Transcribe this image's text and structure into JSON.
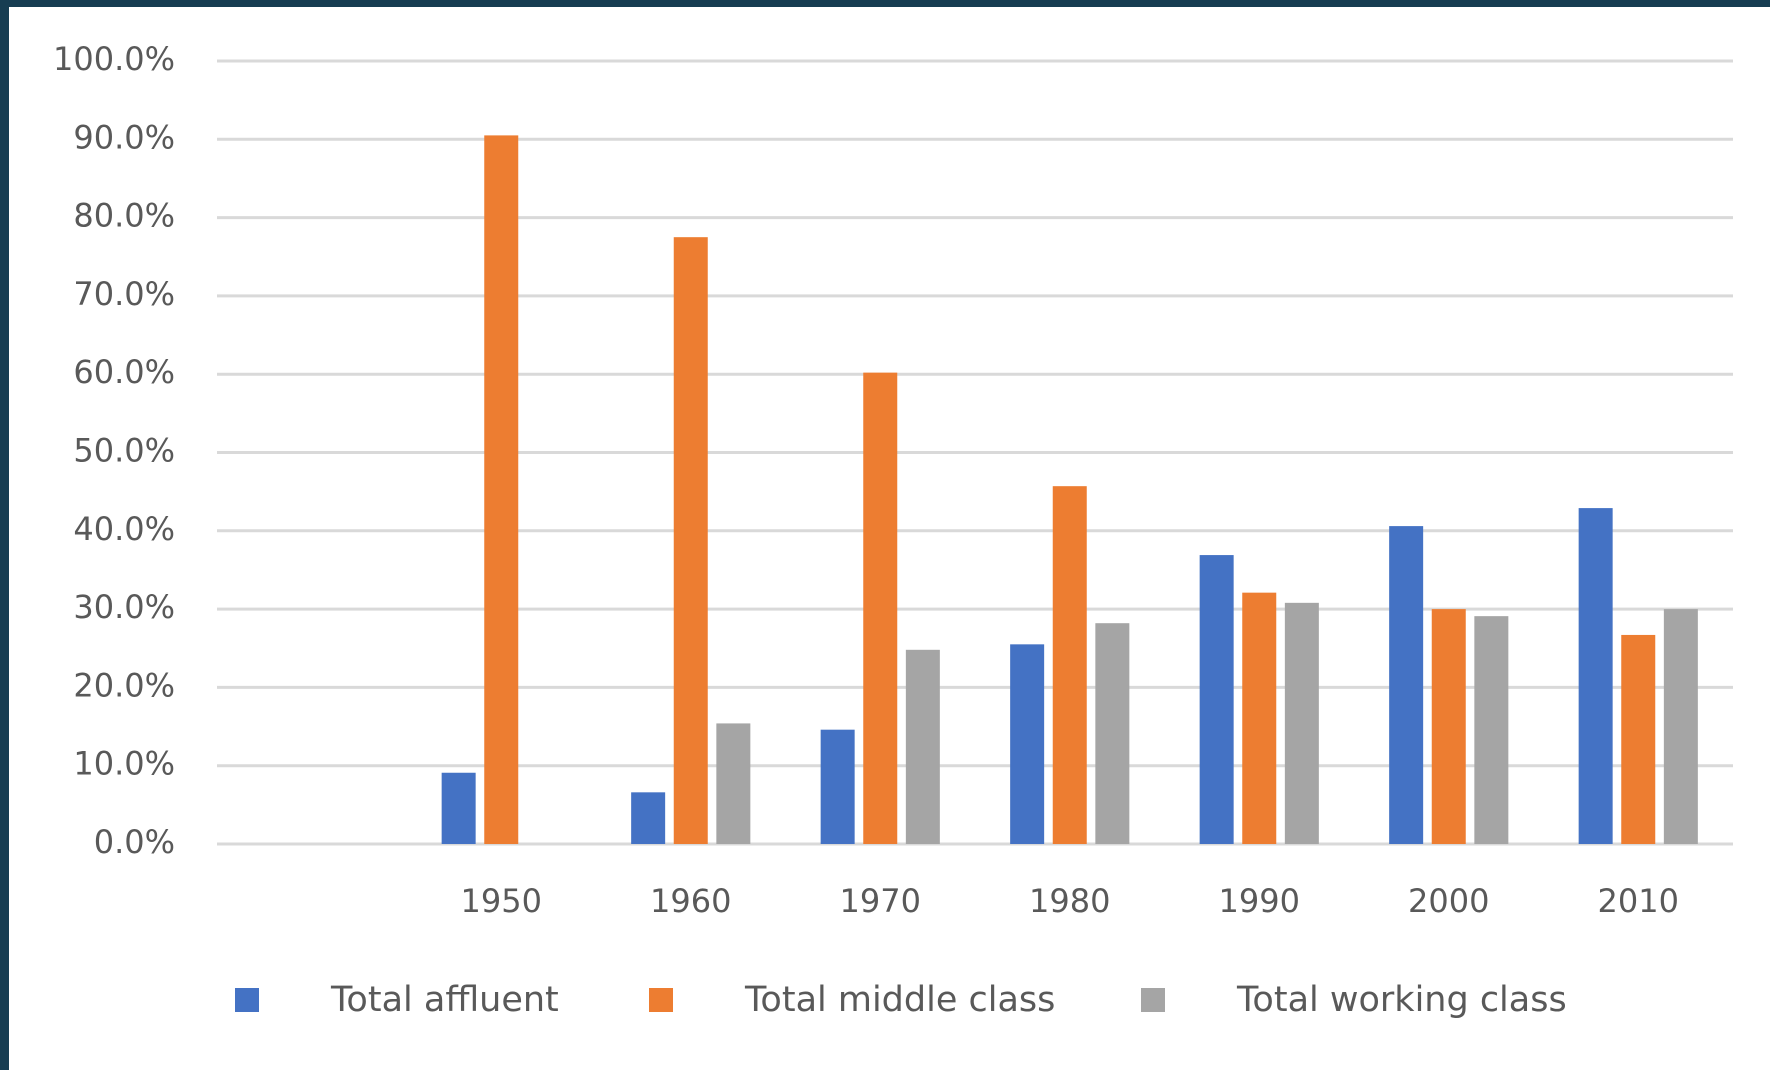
{
  "chart_data": {
    "type": "bar",
    "categories": [
      null,
      "1950",
      "1960",
      "1970",
      "1980",
      "1990",
      "2000",
      "2010"
    ],
    "series": [
      {
        "name": "Total affluent",
        "color": "#4472c4",
        "values": [
          null,
          9.1,
          6.6,
          14.6,
          25.5,
          36.9,
          40.6,
          42.9
        ]
      },
      {
        "name": "Total middle class",
        "color": "#ed7d31",
        "values": [
          null,
          90.5,
          77.5,
          60.2,
          45.7,
          32.1,
          30.0,
          26.7
        ]
      },
      {
        "name": "Total working class",
        "color": "#a5a5a5",
        "values": [
          null,
          null,
          15.4,
          24.8,
          28.2,
          30.8,
          29.1,
          30.0
        ]
      }
    ],
    "ylim": [
      0,
      100
    ],
    "yticks": [
      {
        "value": 0,
        "label": "0.0%"
      },
      {
        "value": 10,
        "label": "10.0%"
      },
      {
        "value": 20,
        "label": "20.0%"
      },
      {
        "value": 30,
        "label": "30.0%"
      },
      {
        "value": 40,
        "label": "40.0%"
      },
      {
        "value": 50,
        "label": "50.0%"
      },
      {
        "value": 60,
        "label": "60.0%"
      },
      {
        "value": 70,
        "label": "70.0%"
      },
      {
        "value": 80,
        "label": "80.0%"
      },
      {
        "value": 90,
        "label": "90.0%"
      },
      {
        "value": 100,
        "label": "100.0%"
      }
    ],
    "grid": true,
    "legend": "bottom"
  }
}
